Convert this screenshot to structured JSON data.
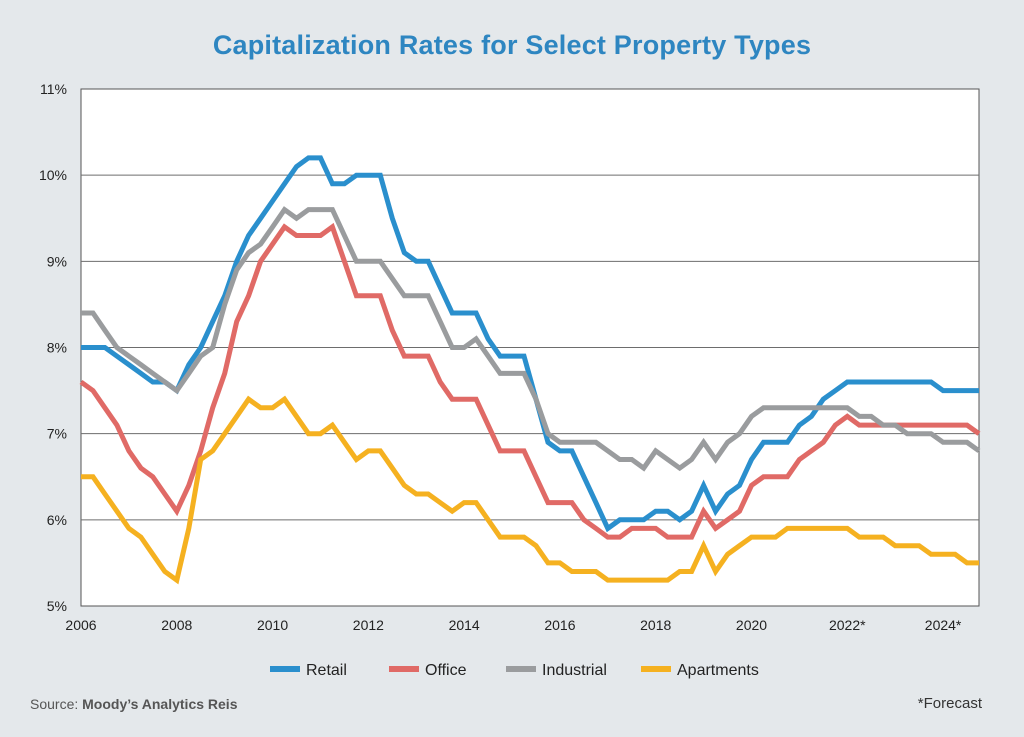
{
  "chart_data": {
    "type": "line",
    "title": "Capitalization Rates for Select Property Types",
    "xlabel": "",
    "ylabel": "",
    "xlim": [
      2006,
      2024.75
    ],
    "ylim": [
      5,
      11
    ],
    "y_ticks": [
      5,
      6,
      7,
      8,
      9,
      10,
      11
    ],
    "y_tick_labels": [
      "5%",
      "6%",
      "7%",
      "8%",
      "9%",
      "10%",
      "11%"
    ],
    "x_ticks": [
      2006,
      2008,
      2010,
      2012,
      2014,
      2016,
      2018,
      2020,
      2022,
      2024
    ],
    "x_tick_labels": [
      "2006",
      "2008",
      "2010",
      "2012",
      "2014",
      "2016",
      "2018",
      "2020",
      "2022*",
      "2024*"
    ],
    "grid": "horizontal",
    "legend": "bottom",
    "series": [
      {
        "name": "Retail",
        "color": "#2a8fcd",
        "x": [
          2006,
          2006.25,
          2006.5,
          2006.75,
          2007,
          2007.25,
          2007.5,
          2007.75,
          2008,
          2008.25,
          2008.5,
          2008.75,
          2009,
          2009.25,
          2009.5,
          2009.75,
          2010,
          2010.25,
          2010.5,
          2010.75,
          2011,
          2011.25,
          2011.5,
          2011.75,
          2012,
          2012.25,
          2012.5,
          2012.75,
          2013,
          2013.25,
          2013.5,
          2013.75,
          2014,
          2014.25,
          2014.5,
          2014.75,
          2015,
          2015.25,
          2015.5,
          2015.75,
          2016,
          2016.25,
          2016.5,
          2016.75,
          2017,
          2017.25,
          2017.5,
          2017.75,
          2018,
          2018.25,
          2018.5,
          2018.75,
          2019,
          2019.25,
          2019.5,
          2019.75,
          2020,
          2020.25,
          2020.5,
          2020.75,
          2021,
          2021.25,
          2021.5,
          2021.75,
          2022,
          2022.25,
          2022.5,
          2022.75,
          2023,
          2023.25,
          2023.5,
          2023.75,
          2024,
          2024.25,
          2024.5,
          2024.75
        ],
        "values": [
          8.0,
          8.0,
          8.0,
          7.9,
          7.8,
          7.7,
          7.6,
          7.6,
          7.5,
          7.8,
          8.0,
          8.3,
          8.6,
          9.0,
          9.3,
          9.5,
          9.7,
          9.9,
          10.1,
          10.2,
          10.2,
          9.9,
          9.9,
          10.0,
          10.0,
          10.0,
          9.5,
          9.1,
          9.0,
          9.0,
          8.7,
          8.4,
          8.4,
          8.4,
          8.1,
          7.9,
          7.9,
          7.9,
          7.4,
          6.9,
          6.8,
          6.8,
          6.5,
          6.2,
          5.9,
          6.0,
          6.0,
          6.0,
          6.1,
          6.1,
          6.0,
          6.1,
          6.4,
          6.1,
          6.3,
          6.4,
          6.7,
          6.9,
          6.9,
          6.9,
          7.1,
          7.2,
          7.4,
          7.5,
          7.6,
          7.6,
          7.6,
          7.6,
          7.6,
          7.6,
          7.6,
          7.6,
          7.5,
          7.5,
          7.5,
          7.5
        ]
      },
      {
        "name": "Office",
        "color": "#e06a66",
        "x": [
          2006,
          2006.25,
          2006.5,
          2006.75,
          2007,
          2007.25,
          2007.5,
          2007.75,
          2008,
          2008.25,
          2008.5,
          2008.75,
          2009,
          2009.25,
          2009.5,
          2009.75,
          2010,
          2010.25,
          2010.5,
          2010.75,
          2011,
          2011.25,
          2011.5,
          2011.75,
          2012,
          2012.25,
          2012.5,
          2012.75,
          2013,
          2013.25,
          2013.5,
          2013.75,
          2014,
          2014.25,
          2014.5,
          2014.75,
          2015,
          2015.25,
          2015.5,
          2015.75,
          2016,
          2016.25,
          2016.5,
          2016.75,
          2017,
          2017.25,
          2017.5,
          2017.75,
          2018,
          2018.25,
          2018.5,
          2018.75,
          2019,
          2019.25,
          2019.5,
          2019.75,
          2020,
          2020.25,
          2020.5,
          2020.75,
          2021,
          2021.25,
          2021.5,
          2021.75,
          2022,
          2022.25,
          2022.5,
          2022.75,
          2023,
          2023.25,
          2023.5,
          2023.75,
          2024,
          2024.25,
          2024.5,
          2024.75
        ],
        "values": [
          7.6,
          7.5,
          7.3,
          7.1,
          6.8,
          6.6,
          6.5,
          6.3,
          6.1,
          6.4,
          6.8,
          7.3,
          7.7,
          8.3,
          8.6,
          9.0,
          9.2,
          9.4,
          9.3,
          9.3,
          9.3,
          9.4,
          9.0,
          8.6,
          8.6,
          8.6,
          8.2,
          7.9,
          7.9,
          7.9,
          7.6,
          7.4,
          7.4,
          7.4,
          7.1,
          6.8,
          6.8,
          6.8,
          6.5,
          6.2,
          6.2,
          6.2,
          6.0,
          5.9,
          5.8,
          5.8,
          5.9,
          5.9,
          5.9,
          5.8,
          5.8,
          5.8,
          6.1,
          5.9,
          6.0,
          6.1,
          6.4,
          6.5,
          6.5,
          6.5,
          6.7,
          6.8,
          6.9,
          7.1,
          7.2,
          7.1,
          7.1,
          7.1,
          7.1,
          7.1,
          7.1,
          7.1,
          7.1,
          7.1,
          7.1,
          7.0
        ]
      },
      {
        "name": "Industrial",
        "color": "#9a9c9e",
        "x": [
          2006,
          2006.25,
          2006.5,
          2006.75,
          2007,
          2007.25,
          2007.5,
          2007.75,
          2008,
          2008.25,
          2008.5,
          2008.75,
          2009,
          2009.25,
          2009.5,
          2009.75,
          2010,
          2010.25,
          2010.5,
          2010.75,
          2011,
          2011.25,
          2011.5,
          2011.75,
          2012,
          2012.25,
          2012.5,
          2012.75,
          2013,
          2013.25,
          2013.5,
          2013.75,
          2014,
          2014.25,
          2014.5,
          2014.75,
          2015,
          2015.25,
          2015.5,
          2015.75,
          2016,
          2016.25,
          2016.5,
          2016.75,
          2017,
          2017.25,
          2017.5,
          2017.75,
          2018,
          2018.25,
          2018.5,
          2018.75,
          2019,
          2019.25,
          2019.5,
          2019.75,
          2020,
          2020.25,
          2020.5,
          2020.75,
          2021,
          2021.25,
          2021.5,
          2021.75,
          2022,
          2022.25,
          2022.5,
          2022.75,
          2023,
          2023.25,
          2023.5,
          2023.75,
          2024,
          2024.25,
          2024.5,
          2024.75
        ],
        "values": [
          8.4,
          8.4,
          8.2,
          8.0,
          7.9,
          7.8,
          7.7,
          7.6,
          7.5,
          7.7,
          7.9,
          8.0,
          8.5,
          8.9,
          9.1,
          9.2,
          9.4,
          9.6,
          9.5,
          9.6,
          9.6,
          9.6,
          9.3,
          9.0,
          9.0,
          9.0,
          8.8,
          8.6,
          8.6,
          8.6,
          8.3,
          8.0,
          8.0,
          8.1,
          7.9,
          7.7,
          7.7,
          7.7,
          7.4,
          7.0,
          6.9,
          6.9,
          6.9,
          6.9,
          6.8,
          6.7,
          6.7,
          6.6,
          6.8,
          6.7,
          6.6,
          6.7,
          6.9,
          6.7,
          6.9,
          7.0,
          7.2,
          7.3,
          7.3,
          7.3,
          7.3,
          7.3,
          7.3,
          7.3,
          7.3,
          7.2,
          7.2,
          7.1,
          7.1,
          7.0,
          7.0,
          7.0,
          6.9,
          6.9,
          6.9,
          6.8
        ]
      },
      {
        "name": "Apartments",
        "color": "#f5b120",
        "x": [
          2006,
          2006.25,
          2006.5,
          2006.75,
          2007,
          2007.25,
          2007.5,
          2007.75,
          2008,
          2008.25,
          2008.5,
          2008.75,
          2009,
          2009.25,
          2009.5,
          2009.75,
          2010,
          2010.25,
          2010.5,
          2010.75,
          2011,
          2011.25,
          2011.5,
          2011.75,
          2012,
          2012.25,
          2012.5,
          2012.75,
          2013,
          2013.25,
          2013.5,
          2013.75,
          2014,
          2014.25,
          2014.5,
          2014.75,
          2015,
          2015.25,
          2015.5,
          2015.75,
          2016,
          2016.25,
          2016.5,
          2016.75,
          2017,
          2017.25,
          2017.5,
          2017.75,
          2018,
          2018.25,
          2018.5,
          2018.75,
          2019,
          2019.25,
          2019.5,
          2019.75,
          2020,
          2020.25,
          2020.5,
          2020.75,
          2021,
          2021.25,
          2021.5,
          2021.75,
          2022,
          2022.25,
          2022.5,
          2022.75,
          2023,
          2023.25,
          2023.5,
          2023.75,
          2024,
          2024.25,
          2024.5,
          2024.75
        ],
        "values": [
          6.5,
          6.5,
          6.3,
          6.1,
          5.9,
          5.8,
          5.6,
          5.4,
          5.3,
          5.9,
          6.7,
          6.8,
          7.0,
          7.2,
          7.4,
          7.3,
          7.3,
          7.4,
          7.2,
          7.0,
          7.0,
          7.1,
          6.9,
          6.7,
          6.8,
          6.8,
          6.6,
          6.4,
          6.3,
          6.3,
          6.2,
          6.1,
          6.2,
          6.2,
          6.0,
          5.8,
          5.8,
          5.8,
          5.7,
          5.5,
          5.5,
          5.4,
          5.4,
          5.4,
          5.3,
          5.3,
          5.3,
          5.3,
          5.3,
          5.3,
          5.4,
          5.4,
          5.7,
          5.4,
          5.6,
          5.7,
          5.8,
          5.8,
          5.8,
          5.9,
          5.9,
          5.9,
          5.9,
          5.9,
          5.9,
          5.8,
          5.8,
          5.8,
          5.7,
          5.7,
          5.7,
          5.6,
          5.6,
          5.6,
          5.5,
          5.5
        ]
      }
    ]
  },
  "source": {
    "prefix": "Source: ",
    "name": "Moody’s Analytics Reis"
  },
  "forecast_note": "*Forecast"
}
